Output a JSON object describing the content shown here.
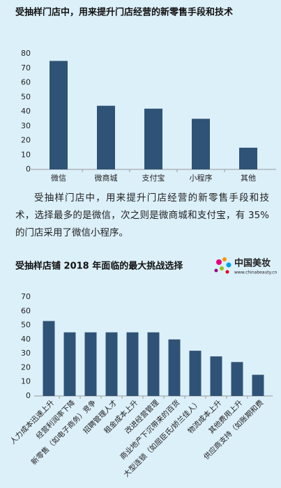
{
  "chart_data": [
    {
      "type": "bar",
      "title": "受抽样门店中，用来提升门店经营的新零售手段和技术",
      "categories": [
        "微信",
        "微商城",
        "支付宝",
        "小程序",
        "其他"
      ],
      "values": [
        75,
        44,
        42,
        35,
        15
      ],
      "color": "#2f5376",
      "ylim": [
        0,
        80
      ],
      "yticks": [
        0,
        10,
        20,
        30,
        40,
        50,
        60,
        70,
        80
      ],
      "grid": false
    },
    {
      "type": "bar",
      "title": "受抽样店铺 2018 年面临的最大挑战选择",
      "categories": [
        "人力成本迅速上升",
        "经营利润率下降",
        "新零售（如电子商务）竞争",
        "招聘管理人才",
        "租金成本上升",
        "改进经营管理",
        "商业地产下沉带来的百货",
        "大型连锁（如屈臣氏/娇兰佳人）",
        "物流成本上升",
        "其他费用上升",
        "供应商支持（如账期和费"
      ],
      "values": [
        53,
        45,
        45,
        45,
        45,
        45,
        40,
        32,
        28,
        24,
        15
      ],
      "color": "#2f5376",
      "ylim": [
        0,
        70
      ],
      "yticks": [
        0,
        10,
        20,
        30,
        40,
        50,
        60,
        70
      ],
      "grid": false
    }
  ],
  "paragraph": "受抽样门店中，用来提升门店经营的新零售手段和技术，选择最多的是微信，次之则是微商城和支付宝，有 35% 的门店采用了微信小程序。",
  "logo": {
    "name": "中国美妆",
    "url": "www.chinabeauty.cn"
  }
}
